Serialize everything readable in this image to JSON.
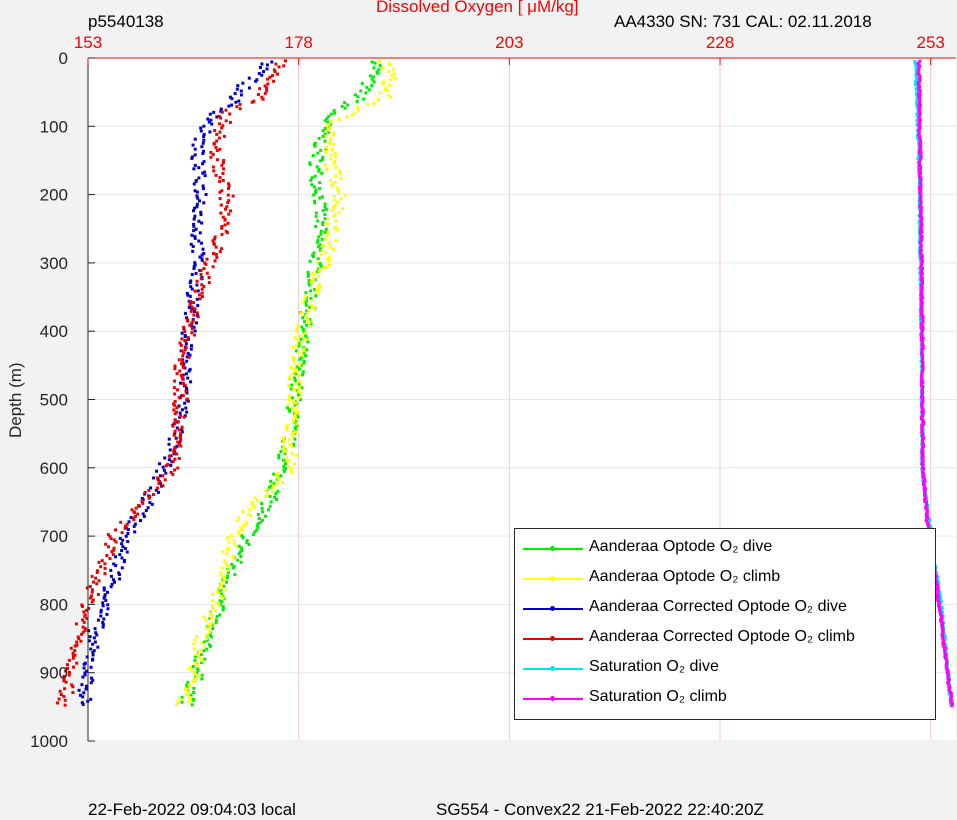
{
  "header": {
    "left": "p5540138",
    "center": "Dissolved Oxygen [    μM/kg]",
    "right": "AA4330   SN: 731   CAL: 02.11.2018"
  },
  "footer": {
    "left": "22-Feb-2022 09:04:03 local",
    "right": "SG554 - Convex22 21-Feb-2022 22:40:20Z"
  },
  "chart_data": {
    "type": "scatter",
    "title": "Dissolved Oxygen [    μM/kg]",
    "xlabel": "",
    "ylabel": "Depth (m)",
    "xlim": [
      153,
      256
    ],
    "ylim": [
      0,
      1000
    ],
    "y_reversed": true,
    "x_axis_position": "top",
    "xticks": [
      153,
      178,
      203,
      228,
      253
    ],
    "yticks": [
      0,
      100,
      200,
      300,
      400,
      500,
      600,
      700,
      800,
      900,
      1000
    ],
    "grid": true,
    "legend_position": "bottom-right",
    "colors": {
      "axis_x": "#ff0000",
      "grid": "#f3c9c9"
    },
    "series": [
      {
        "name": "Aanderaa Optode O₂ dive",
        "color": "#00ee00",
        "points": [
          [
            187.5,
            5
          ],
          [
            187,
            20
          ],
          [
            186,
            40
          ],
          [
            185,
            60
          ],
          [
            182,
            80
          ],
          [
            181,
            100
          ],
          [
            180.5,
            130
          ],
          [
            180,
            160
          ],
          [
            180.5,
            200
          ],
          [
            180.5,
            250
          ],
          [
            180,
            300
          ],
          [
            179.5,
            350
          ],
          [
            178.5,
            400
          ],
          [
            178,
            450
          ],
          [
            177.5,
            500
          ],
          [
            177,
            550
          ],
          [
            176,
            600
          ],
          [
            174.5,
            650
          ],
          [
            172,
            700
          ],
          [
            170,
            750
          ],
          [
            168.5,
            800
          ],
          [
            167,
            850
          ],
          [
            166,
            900
          ],
          [
            164.5,
            950
          ]
        ]
      },
      {
        "name": "Aanderaa Optode O₂ climb",
        "color": "#ffff00",
        "points": [
          [
            188,
            5
          ],
          [
            189,
            20
          ],
          [
            188.5,
            40
          ],
          [
            188,
            60
          ],
          [
            184,
            80
          ],
          [
            182,
            100
          ],
          [
            181.5,
            130
          ],
          [
            182,
            160
          ],
          [
            183,
            200
          ],
          [
            182,
            250
          ],
          [
            181,
            300
          ],
          [
            179.5,
            350
          ],
          [
            178.5,
            400
          ],
          [
            177.5,
            450
          ],
          [
            177.5,
            500
          ],
          [
            177,
            550
          ],
          [
            177,
            600
          ],
          [
            173,
            650
          ],
          [
            170,
            700
          ],
          [
            169.5,
            750
          ],
          [
            168,
            800
          ],
          [
            166.5,
            850
          ],
          [
            165.5,
            900
          ],
          [
            164,
            950
          ]
        ]
      },
      {
        "name": "Aanderaa Corrected Optode O₂ dive",
        "color": "#0000cc",
        "points": [
          [
            174.5,
            5
          ],
          [
            174,
            20
          ],
          [
            171.5,
            40
          ],
          [
            170.5,
            60
          ],
          [
            168.5,
            80
          ],
          [
            167,
            100
          ],
          [
            166,
            130
          ],
          [
            166,
            160
          ],
          [
            166.5,
            200
          ],
          [
            166,
            250
          ],
          [
            166,
            300
          ],
          [
            165.5,
            350
          ],
          [
            165,
            400
          ],
          [
            164.5,
            450
          ],
          [
            164.5,
            500
          ],
          [
            163.5,
            550
          ],
          [
            162,
            600
          ],
          [
            160,
            650
          ],
          [
            157.5,
            700
          ],
          [
            156.5,
            750
          ],
          [
            155,
            800
          ],
          [
            153.5,
            850
          ],
          [
            153,
            900
          ],
          [
            152.5,
            950
          ]
        ]
      },
      {
        "name": "Aanderaa Corrected Optode O₂ climb",
        "color": "#ee0000",
        "points": [
          [
            176,
            5
          ],
          [
            175.5,
            20
          ],
          [
            174,
            40
          ],
          [
            173,
            60
          ],
          [
            169.5,
            80
          ],
          [
            169,
            100
          ],
          [
            168,
            130
          ],
          [
            168.5,
            160
          ],
          [
            169.5,
            200
          ],
          [
            169,
            250
          ],
          [
            167.5,
            300
          ],
          [
            166,
            350
          ],
          [
            165,
            400
          ],
          [
            164,
            450
          ],
          [
            164,
            500
          ],
          [
            163.5,
            550
          ],
          [
            163,
            600
          ],
          [
            159.5,
            650
          ],
          [
            156,
            700
          ],
          [
            154.5,
            750
          ],
          [
            153,
            800
          ],
          [
            152,
            850
          ],
          [
            151,
            900
          ],
          [
            150,
            950
          ]
        ]
      },
      {
        "name": "Saturation O₂ dive",
        "color": "#00e5ee",
        "points": [
          [
            251.2,
            5
          ],
          [
            251.5,
            100
          ],
          [
            251.7,
            200
          ],
          [
            251.8,
            300
          ],
          [
            251.9,
            400
          ],
          [
            252,
            500
          ],
          [
            252,
            600
          ],
          [
            252.8,
            680
          ],
          [
            253.5,
            740
          ],
          [
            254.2,
            800
          ],
          [
            254.7,
            860
          ],
          [
            255.2,
            920
          ],
          [
            255.5,
            950
          ]
        ]
      },
      {
        "name": "Saturation O₂ climb",
        "color": "#ff00ff",
        "points": [
          [
            251.6,
            5
          ],
          [
            251.7,
            100
          ],
          [
            251.8,
            200
          ],
          [
            251.9,
            300
          ],
          [
            252,
            400
          ],
          [
            252,
            500
          ],
          [
            252.1,
            600
          ],
          [
            252.6,
            680
          ],
          [
            253.3,
            740
          ],
          [
            254,
            800
          ],
          [
            254.6,
            860
          ],
          [
            255.2,
            920
          ],
          [
            255.6,
            950
          ]
        ]
      }
    ]
  }
}
